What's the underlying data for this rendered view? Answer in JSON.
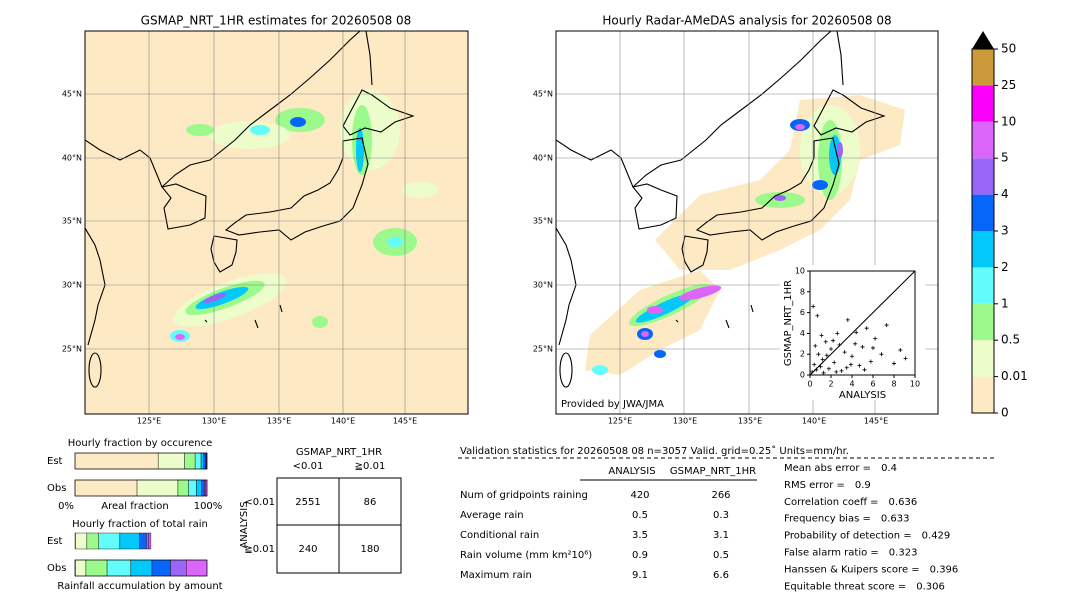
{
  "left_map": {
    "title": "GSMAP_NRT_1HR estimates for 20260508 08",
    "lat_labels": [
      "45°N",
      "40°N",
      "35°N",
      "30°N",
      "25°N"
    ],
    "lon_labels": [
      "125°E",
      "130°E",
      "135°E",
      "140°E",
      "145°E"
    ]
  },
  "right_map": {
    "title": "Hourly Radar-AMeDAS analysis for 20260508 08",
    "credit": "Provided by JWA/JMA",
    "lat_labels": [
      "45°N",
      "40°N",
      "35°N",
      "30°N",
      "25°N"
    ],
    "lon_labels": [
      "125°E",
      "130°E",
      "135°E",
      "140°E",
      "145°E"
    ]
  },
  "colorbar": {
    "levels": [
      0,
      0.01,
      0.5,
      1,
      2,
      3,
      4,
      5,
      10,
      25,
      50
    ],
    "colors": [
      "#fde9c3",
      "#edfccb",
      "#9cf98c",
      "#63fcfc",
      "#03c8fa",
      "#0566f9",
      "#9a66fa",
      "#dc66fa",
      "#fb00fb",
      "#cc9a3a"
    ]
  },
  "scatter": {
    "type": "scatter",
    "xlabel": "ANALYSIS",
    "ylabel": "GSMAP_NRT_1HR",
    "xlim": [
      0,
      10
    ],
    "ylim": [
      0,
      10
    ],
    "xticks": [
      0,
      2,
      4,
      6,
      8,
      10
    ],
    "yticks": [
      0,
      2,
      4,
      6,
      8,
      10
    ],
    "x": [
      0.2,
      0.4,
      0.6,
      0.8,
      1.0,
      1.2,
      1.5,
      1.8,
      2.0,
      2.3,
      2.6,
      3.0,
      3.3,
      3.6,
      4.0,
      4.3,
      4.7,
      5.0,
      5.4,
      5.8,
      6.2,
      6.8,
      7.3,
      8.0,
      8.6,
      9.1,
      0.3,
      0.7,
      1.1,
      1.6,
      2.2,
      2.8,
      3.5,
      4.4,
      5.2,
      6.0,
      1.3,
      0.5,
      2.5,
      3.9
    ],
    "y": [
      0.3,
      1.0,
      0.5,
      2.0,
      0.8,
      1.5,
      3.2,
      0.6,
      2.5,
      1.2,
      4.0,
      0.4,
      2.2,
      5.3,
      1.8,
      3.0,
      0.9,
      2.7,
      4.5,
      1.3,
      3.5,
      2.0,
      4.8,
      1.1,
      2.4,
      1.6,
      6.6,
      5.7,
      3.8,
      1.9,
      3.3,
      2.9,
      0.7,
      4.1,
      0.5,
      2.6,
      0.2,
      2.8,
      0.3,
      1.0
    ]
  },
  "occurrence": {
    "title": "Hourly fraction by occurence",
    "rows": [
      "Est",
      "Obs"
    ],
    "axis_labels": [
      "0%",
      "Areal fraction",
      "100%"
    ],
    "est": [
      63,
      20,
      8,
      4.5,
      2,
      1.5,
      0.5,
      0.5
    ],
    "obs": [
      47,
      31,
      8,
      6,
      4,
      2,
      1,
      1
    ]
  },
  "amount": {
    "title": "Hourly fraction of total rain",
    "rows": [
      "Est",
      "Obs"
    ],
    "xlabel": "Rainfall accumulation by amount",
    "est": [
      0.4,
      8.6,
      9,
      16,
      15,
      5,
      2,
      1.5
    ],
    "obs": [
      0.3,
      8,
      16,
      18,
      16,
      14,
      12,
      15.7
    ]
  },
  "contingency": {
    "title": "GSMAP_NRT_1HR",
    "col_headers": [
      "<0.01",
      "≧0.01"
    ],
    "row_axis": "ANALYSIS",
    "row_headers": [
      "<0.01",
      "≧0.01"
    ],
    "cells": [
      [
        2551,
        86
      ],
      [
        240,
        180
      ]
    ]
  },
  "validation": {
    "header": "Validation statistics for 20260508 08  n=3057 Valid. grid=0.25˚ Units=mm/hr.",
    "columns": [
      "ANALYSIS",
      "GSMAP_NRT_1HR"
    ],
    "rows": [
      {
        "label": "Num of gridpoints raining",
        "values": [
          420,
          266
        ]
      },
      {
        "label": "Average rain",
        "values": [
          0.5,
          0.3
        ]
      },
      {
        "label": "Conditional rain",
        "values": [
          3.5,
          3.1
        ]
      },
      {
        "label": "Rain volume (mm km²10⁶)",
        "values": [
          0.9,
          0.5
        ]
      },
      {
        "label": "Maximum rain",
        "values": [
          9.1,
          6.6
        ]
      }
    ]
  },
  "scores": [
    {
      "label": "Mean abs error =",
      "value": 0.4
    },
    {
      "label": "RMS error =",
      "value": 0.9
    },
    {
      "label": "Correlation coeff =",
      "value": 0.636
    },
    {
      "label": "Frequency bias =",
      "value": 0.633
    },
    {
      "label": "Probability of detection =",
      "value": 0.429
    },
    {
      "label": "False alarm ratio =",
      "value": 0.323
    },
    {
      "label": "Hanssen & Kuipers score =",
      "value": 0.396
    },
    {
      "label": "Equitable threat score =",
      "value": 0.306
    }
  ]
}
